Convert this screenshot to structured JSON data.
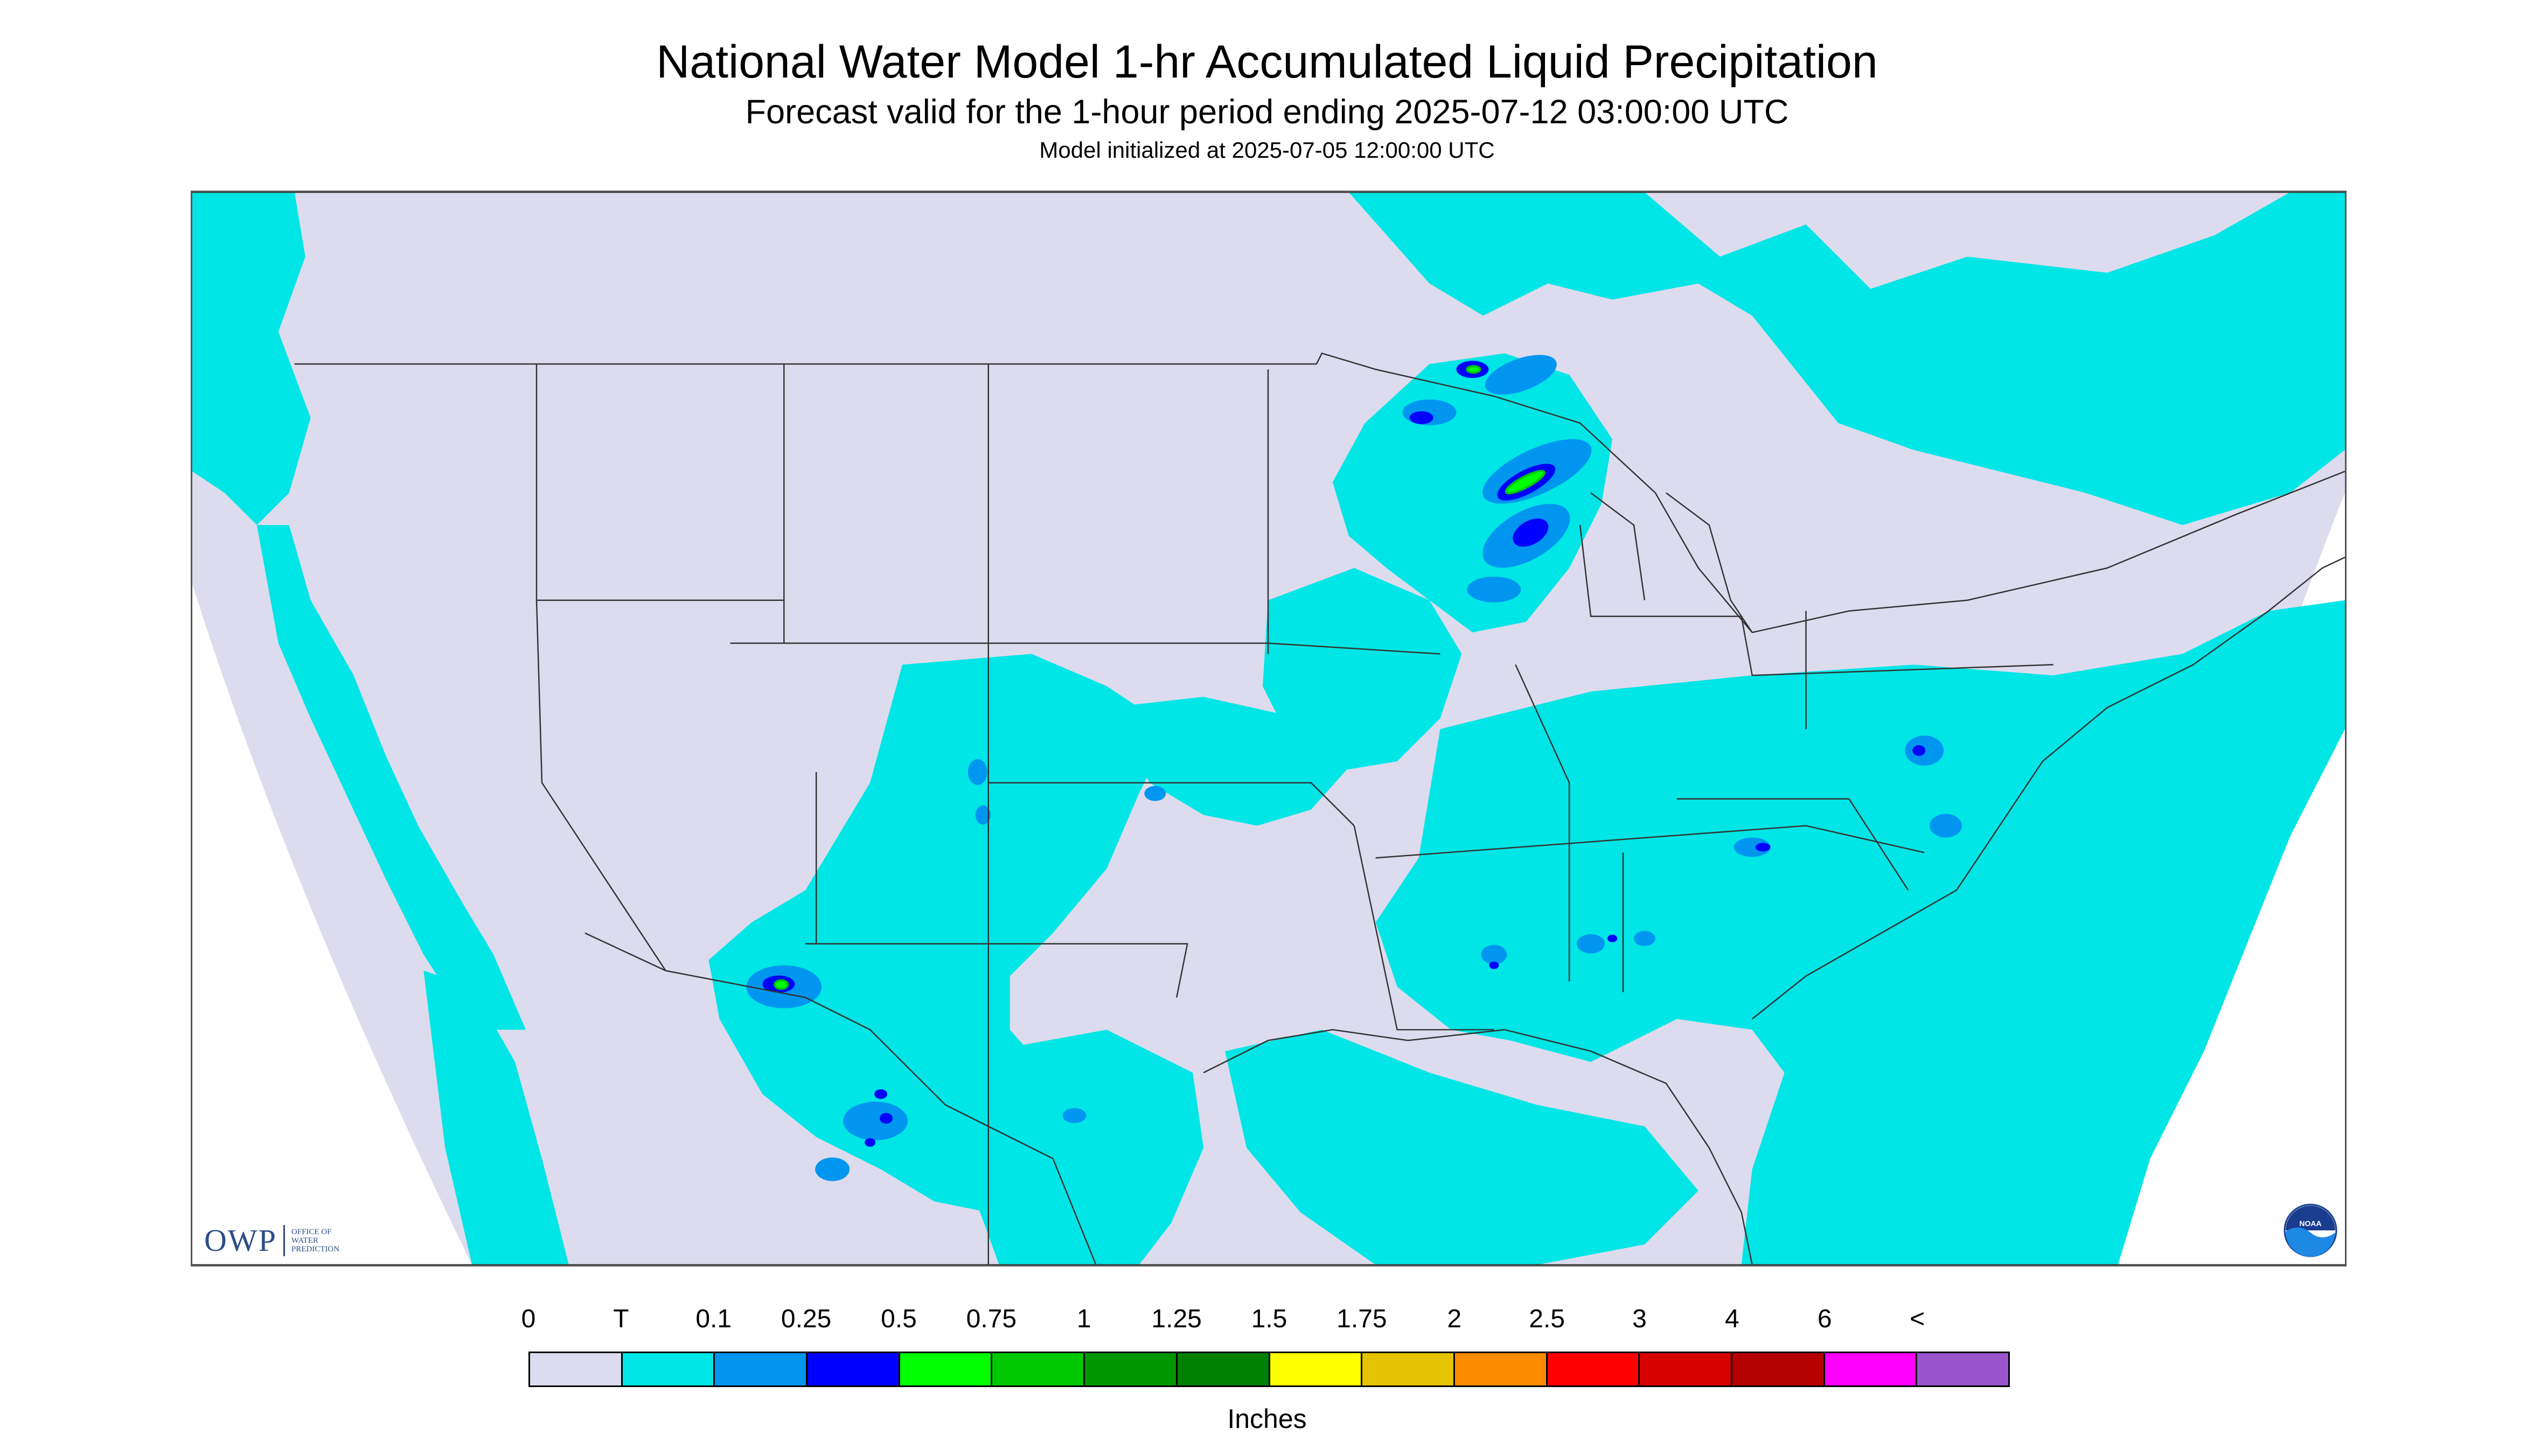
{
  "title": "National Water Model 1-hr Accumulated Liquid Precipitation",
  "subtitle": "Forecast valid for the 1-hour period ending 2025-07-12 03:00:00 UTC",
  "init_line": "Model initialized at 2025-07-05 12:00:00 UTC",
  "logo_owp": {
    "mark": "OWP",
    "text": "OFFICE OF WATER PREDICTION"
  },
  "logo_noaa": {
    "text": "NOAA"
  },
  "legend": {
    "units": "Inches",
    "tick_labels": [
      "0",
      "T",
      "0.1",
      "0.25",
      "0.5",
      "0.75",
      "1",
      "1.25",
      "1.5",
      "1.75",
      "2",
      "2.5",
      "3",
      "4",
      "6",
      "<"
    ],
    "colors": [
      "#dcdcee",
      "#00e5e5",
      "#0096f0",
      "#0000ff",
      "#00ff00",
      "#00c800",
      "#009600",
      "#008000",
      "#ffff00",
      "#e6c300",
      "#ff8c00",
      "#ff0000",
      "#d70000",
      "#b40000",
      "#ff00ff",
      "#9955cc"
    ]
  },
  "map_colors": {
    "background": "#dcdcee",
    "trace": "#00e5e5",
    "light": "#0096f0",
    "moderate": "#0000ff",
    "heavy": "#00ff00",
    "heavier": "#00c800",
    "border_line": "#333333"
  }
}
